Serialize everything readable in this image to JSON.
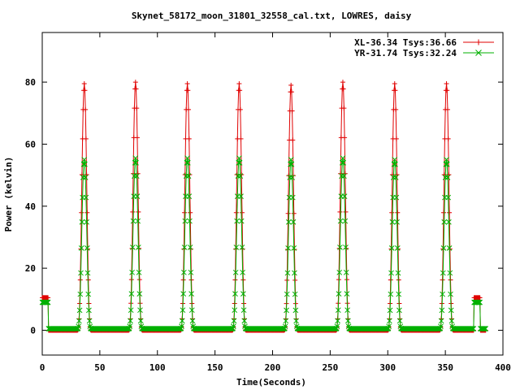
{
  "chart_data": {
    "type": "line",
    "title": "Skynet_58172_moon_31801_32558_cal.txt, LOWRES, daisy",
    "xlabel": "Time(Seconds)",
    "ylabel": "Power (kelvin)",
    "xlim": [
      0,
      400
    ],
    "ylim": [
      -8,
      96
    ],
    "x_ticks": [
      0,
      50,
      100,
      150,
      200,
      250,
      300,
      350,
      400
    ],
    "y_ticks": [
      0,
      20,
      40,
      60,
      80
    ],
    "grid": false,
    "legend_position": "top-right",
    "series": [
      {
        "name": "XL-36.34 Tsys:36.66",
        "color": "#e00000",
        "marker": "plus",
        "baseline": 0,
        "cal_pulses": [
          {
            "start": 0,
            "end": 5,
            "level": 10.5
          },
          {
            "start": 375,
            "end": 380,
            "level": 10.5
          }
        ],
        "peaks": [
          {
            "x": 36.5,
            "y": 79.5
          },
          {
            "x": 81,
            "y": 80
          },
          {
            "x": 126,
            "y": 79.5
          },
          {
            "x": 171,
            "y": 79.5
          },
          {
            "x": 216,
            "y": 79
          },
          {
            "x": 261,
            "y": 80
          },
          {
            "x": 306,
            "y": 79.5
          },
          {
            "x": 351,
            "y": 79.5
          }
        ]
      },
      {
        "name": "YR-31.74 Tsys:32.24",
        "color": "#00b000",
        "marker": "cross",
        "baseline": 0.5,
        "cal_pulses": [
          {
            "start": 0,
            "end": 5,
            "level": 9
          },
          {
            "start": 375,
            "end": 380,
            "level": 9
          }
        ],
        "peaks": [
          {
            "x": 36.5,
            "y": 55
          },
          {
            "x": 81,
            "y": 55.5
          },
          {
            "x": 126,
            "y": 55.5
          },
          {
            "x": 171,
            "y": 55.5
          },
          {
            "x": 216,
            "y": 55
          },
          {
            "x": 261,
            "y": 55.5
          },
          {
            "x": 306,
            "y": 55
          },
          {
            "x": 351,
            "y": 55
          }
        ]
      }
    ],
    "sample_interval": 0.5,
    "time_span": [
      0,
      385
    ]
  }
}
